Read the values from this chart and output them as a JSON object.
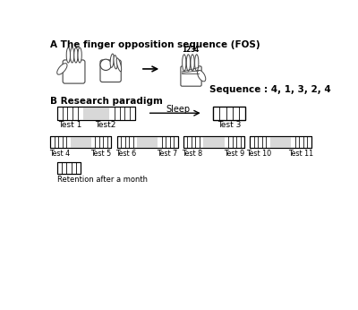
{
  "title_a": "A The finger opposition sequence (FOS)",
  "title_b": "B Research paradigm",
  "sequence_text": "Sequence : 4, 1, 3, 2, 4",
  "sleep_label": "Sleep",
  "row1_labels": [
    "Test 1",
    "Test2",
    "Test 3"
  ],
  "row2_labels": [
    "Test 4",
    "Test 5",
    "Test 6",
    "Test 7",
    "Test 8",
    "Test 9",
    "Test 10",
    "Test 11"
  ],
  "retention_label": "Retention after a month",
  "bg_color": "#ffffff",
  "gray_color": "#d8d8d8",
  "finger_numbers": [
    "1",
    "2",
    "3",
    "4"
  ]
}
